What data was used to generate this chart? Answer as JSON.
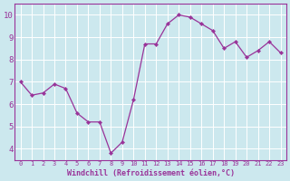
{
  "x": [
    0,
    1,
    2,
    3,
    4,
    5,
    6,
    7,
    8,
    9,
    10,
    11,
    12,
    13,
    14,
    15,
    16,
    17,
    18,
    19,
    20,
    21,
    22,
    23
  ],
  "y": [
    7.0,
    6.4,
    6.5,
    6.9,
    6.7,
    5.6,
    5.2,
    5.2,
    3.8,
    4.3,
    6.2,
    8.7,
    8.7,
    9.6,
    10.0,
    9.9,
    9.6,
    9.3,
    8.5,
    8.8,
    8.1,
    8.4,
    8.8,
    8.3
  ],
  "line_color": "#993399",
  "marker_color": "#993399",
  "bg_color": "#cce8ee",
  "grid_color": "#ffffff",
  "xlabel": "Windchill (Refroidissement éolien,°C)",
  "xlabel_color": "#993399",
  "ylim": [
    3.5,
    10.5
  ],
  "xlim": [
    -0.5,
    23.5
  ],
  "yticks": [
    4,
    5,
    6,
    7,
    8,
    9,
    10
  ],
  "xticks": [
    0,
    1,
    2,
    3,
    4,
    5,
    6,
    7,
    8,
    9,
    10,
    11,
    12,
    13,
    14,
    15,
    16,
    17,
    18,
    19,
    20,
    21,
    22,
    23
  ],
  "tick_color": "#993399",
  "spine_color": "#993399",
  "tick_fontsize": 5.0,
  "ylabel_fontsize": 6.5,
  "xlabel_fontsize": 6.0
}
